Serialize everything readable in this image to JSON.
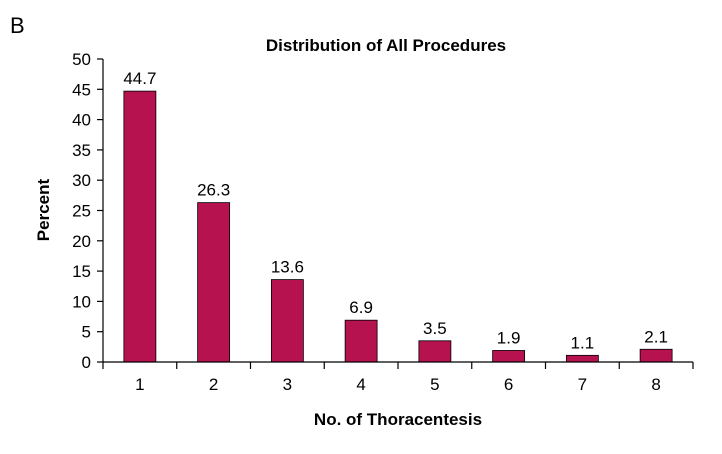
{
  "panel_label": "B",
  "chart_data": {
    "type": "bar",
    "title": "Distribution of All Procedures",
    "xlabel": "No. of Thoracentesis",
    "ylabel": "Percent",
    "categories": [
      "1",
      "2",
      "3",
      "4",
      "5",
      "6",
      "7",
      "8"
    ],
    "values": [
      44.7,
      26.3,
      13.6,
      6.9,
      3.5,
      1.9,
      1.1,
      2.1
    ],
    "data_labels": [
      "44.7",
      "26.3",
      "13.6",
      "6.9",
      "3.5",
      "1.9",
      "1.1",
      "2.1"
    ],
    "ylim": [
      0,
      50
    ],
    "yticks": [
      0,
      5,
      10,
      15,
      20,
      25,
      30,
      35,
      40,
      45,
      50
    ],
    "bar_color": "#b5124f",
    "grid": false,
    "legend": "none"
  }
}
